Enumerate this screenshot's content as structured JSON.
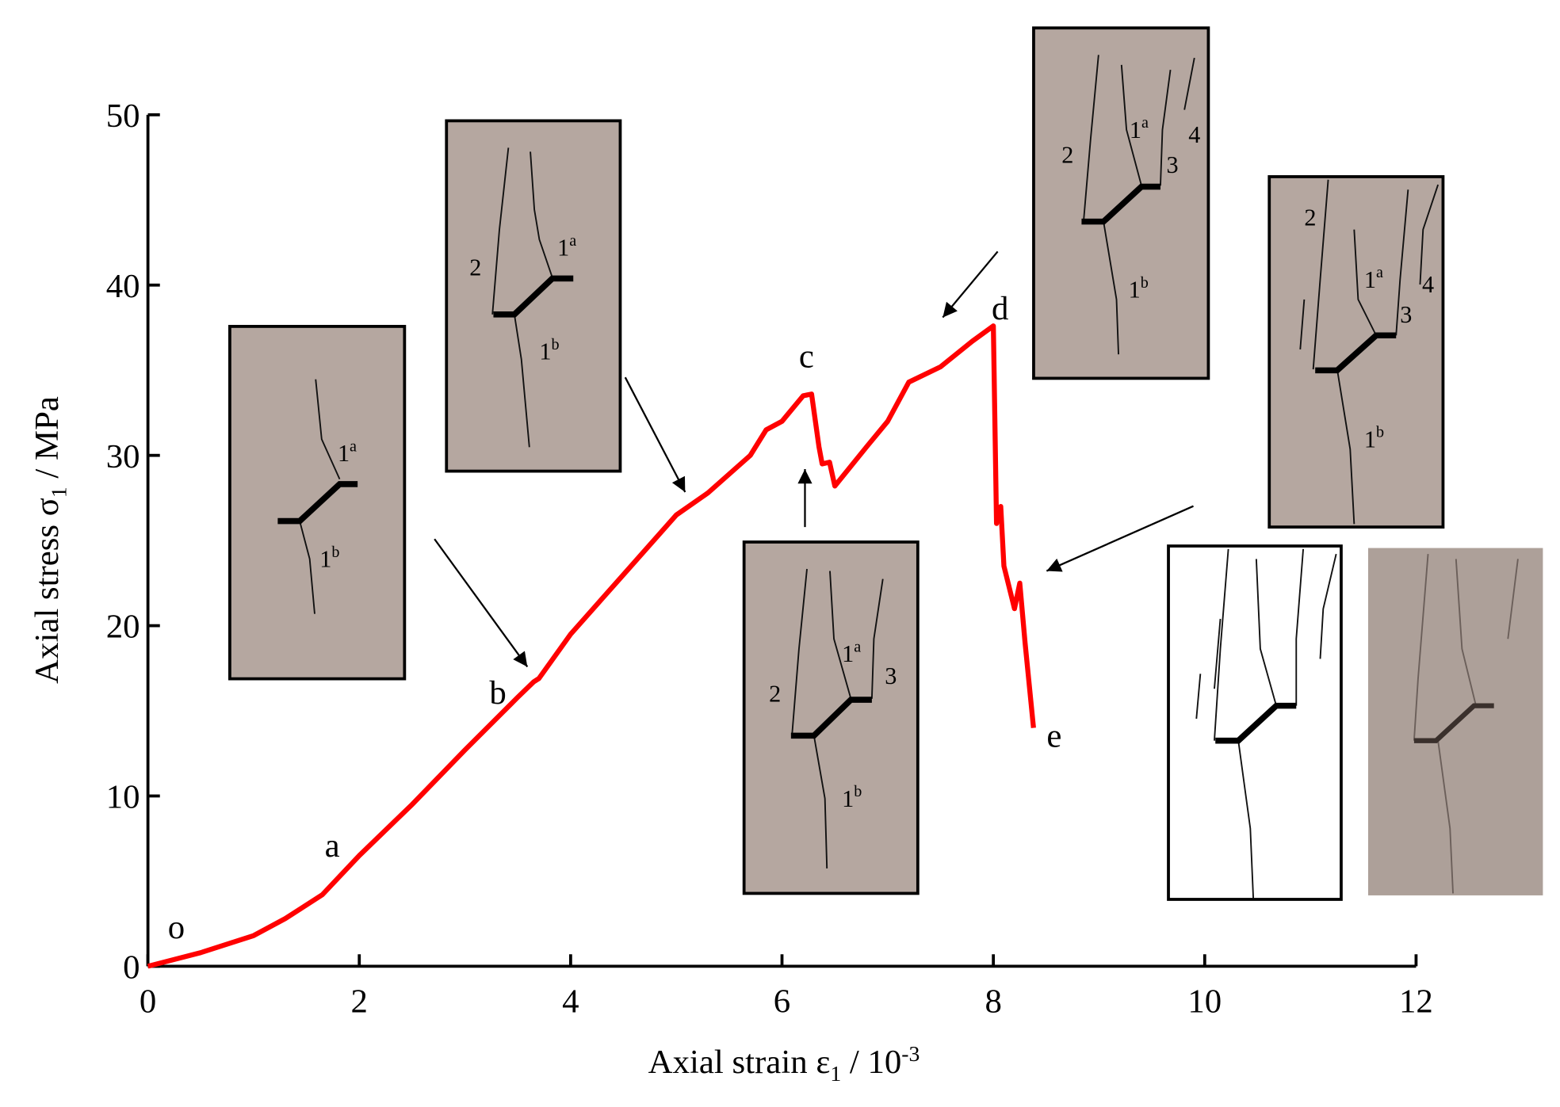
{
  "chart_data": {
    "type": "line",
    "x_label": {
      "pre": "Axial strain ε",
      "sub": "1",
      "mid": " / 10",
      "sup": "-3"
    },
    "y_label": {
      "pre": "Axial stress σ",
      "sub": "1",
      "post": " / MPa"
    },
    "xlim": [
      0,
      12
    ],
    "xticks": [
      0,
      2,
      4,
      6,
      8,
      10,
      12
    ],
    "ylim": [
      0,
      50
    ],
    "yticks": [
      0,
      10,
      20,
      30,
      40,
      50
    ],
    "series": [
      {
        "color": "#ff0000",
        "x": [
          0,
          0.5,
          1,
          1.3,
          1.65,
          2,
          2.5,
          3,
          3.5,
          3.65,
          3.7,
          4,
          4.5,
          5,
          5.3,
          5.7,
          5.85,
          6,
          6.2,
          6.28,
          6.35,
          6.38,
          6.45,
          6.5,
          6.8,
          7,
          7.2,
          7.5,
          7.8,
          8.0,
          8.03,
          8.07,
          8.1,
          8.2,
          8.25,
          8.3,
          8.38
        ],
        "values": [
          0,
          0.8,
          1.8,
          2.8,
          4.2,
          6.5,
          9.5,
          12.7,
          15.8,
          16.7,
          16.9,
          19.5,
          23,
          26.5,
          27.8,
          30,
          31.5,
          32,
          33.5,
          33.6,
          30.5,
          29.5,
          29.6,
          28.2,
          30.5,
          32,
          34.3,
          35.2,
          36.7,
          37.6,
          26,
          27,
          23.5,
          21,
          22.5,
          19,
          14
        ]
      }
    ],
    "point_labels": [
      "o",
      "a",
      "b",
      "c",
      "d",
      "e"
    ],
    "insets": [
      {
        "labels": [
          {
            "text": "1",
            "sup": "a"
          },
          {
            "text": "1",
            "sup": "b"
          }
        ]
      },
      {
        "labels": [
          {
            "text": "2"
          },
          {
            "text": "1",
            "sup": "a"
          },
          {
            "text": "1",
            "sup": "b"
          }
        ]
      },
      {
        "labels": [
          {
            "text": "2"
          },
          {
            "text": "1",
            "sup": "a"
          },
          {
            "text": "3"
          },
          {
            "text": "1",
            "sup": "b"
          }
        ]
      },
      {
        "labels": [
          {
            "text": "2"
          },
          {
            "text": "1",
            "sup": "a"
          },
          {
            "text": "3"
          },
          {
            "text": "4"
          },
          {
            "text": "1",
            "sup": "b"
          }
        ]
      },
      {
        "labels": [
          {
            "text": "2"
          },
          {
            "text": "1",
            "sup": "a"
          },
          {
            "text": "4"
          },
          {
            "text": "3"
          },
          {
            "text": "1",
            "sup": "b"
          }
        ]
      }
    ]
  }
}
